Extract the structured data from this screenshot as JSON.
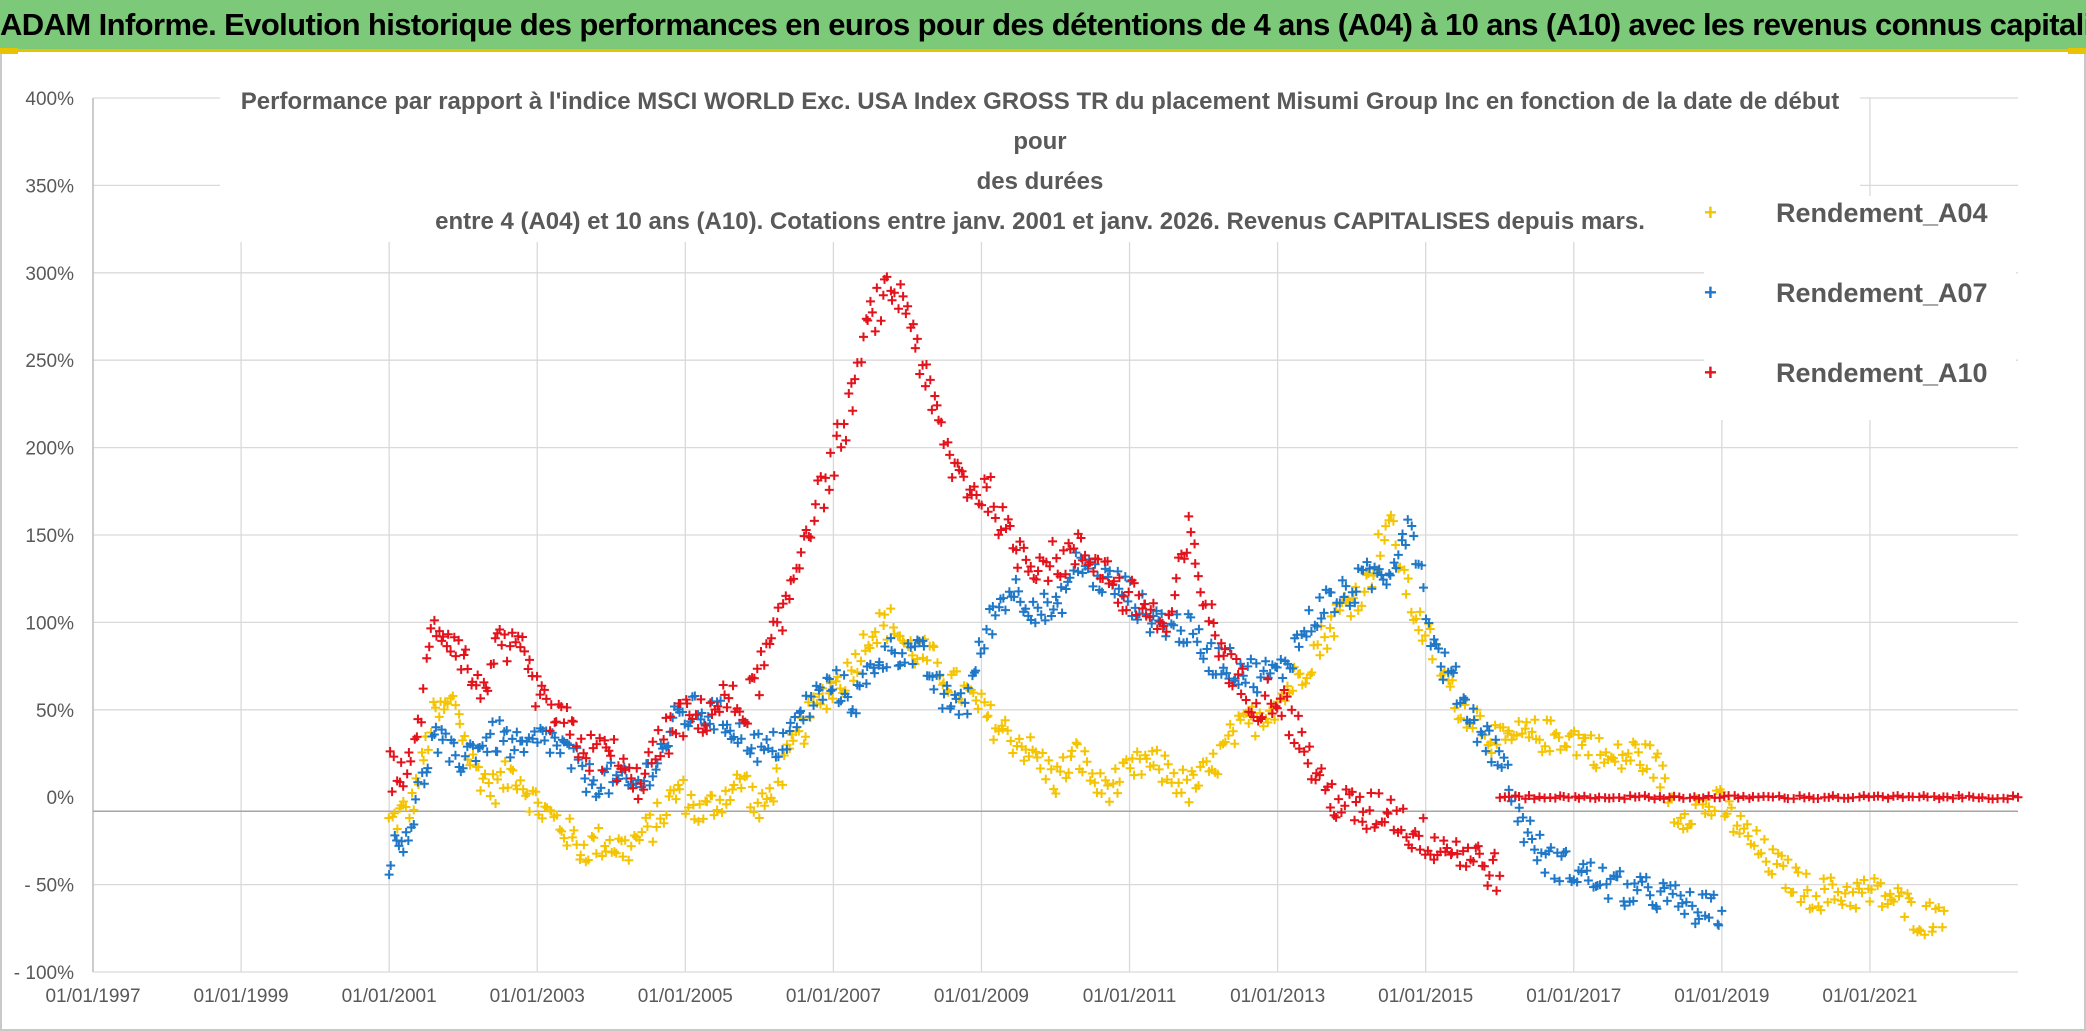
{
  "header": {
    "title": "ADAM Informe. Evolution historique des performances en euros pour des détentions de 4 ans (A04) à 10 ans (A10) avec les revenus connus capitalisés"
  },
  "colors": {
    "banner": "#7dc97a",
    "accent": "#e9c200",
    "A04": "#f5c400",
    "A07": "#1f77c8",
    "A10": "#e3121b",
    "grid": "#d9d9d9",
    "text": "#595959"
  },
  "chart_data": {
    "type": "scatter",
    "title_lines": [
      "Performance par rapport à l'indice MSCI WORLD Exc. USA Index GROSS TR  du placement Misumi Group Inc en fonction de la date de début pour",
      "des durées",
      "entre 4 (A04) et 10 ans (A10). Cotations entre janv. 2001 et janv. 2026. Revenus CAPITALISES depuis mars."
    ],
    "marker": "+",
    "x_range": [
      1997.0,
      2023.0
    ],
    "x_ticks": [
      {
        "label": "01/01/1997",
        "value": 1997
      },
      {
        "label": "01/01/1999",
        "value": 1999
      },
      {
        "label": "01/01/2001",
        "value": 2001
      },
      {
        "label": "01/01/2003",
        "value": 2003
      },
      {
        "label": "01/01/2005",
        "value": 2005
      },
      {
        "label": "01/01/2007",
        "value": 2007
      },
      {
        "label": "01/01/2009",
        "value": 2009
      },
      {
        "label": "01/01/2011",
        "value": 2011
      },
      {
        "label": "01/01/2013",
        "value": 2013
      },
      {
        "label": "01/01/2015",
        "value": 2015
      },
      {
        "label": "01/01/2017",
        "value": 2017
      },
      {
        "label": "01/01/2019",
        "value": 2019
      },
      {
        "label": "01/01/2021",
        "value": 2021
      }
    ],
    "ylim": [
      -100,
      400
    ],
    "y_ticks": [
      {
        "label": "400%",
        "value": 400
      },
      {
        "label": "350%",
        "value": 350
      },
      {
        "label": "300%",
        "value": 300
      },
      {
        "label": "250%",
        "value": 250
      },
      {
        "label": "200%",
        "value": 200
      },
      {
        "label": "150%",
        "value": 150
      },
      {
        "label": "100%",
        "value": 100
      },
      {
        "label": "50%",
        "value": 50
      },
      {
        "label": "0%",
        "value": 0
      },
      {
        "label": "- 50%",
        "value": -50
      },
      {
        "label": "- 100%",
        "value": -100
      }
    ],
    "grid": true,
    "legend_position": "right",
    "series": [
      {
        "name": "Rendement_A04",
        "color": "#f5c400",
        "spread": 10,
        "points": [
          [
            2001.0,
            -15
          ],
          [
            2001.3,
            -5
          ],
          [
            2001.6,
            45
          ],
          [
            2001.9,
            55
          ],
          [
            2002.1,
            20
          ],
          [
            2002.4,
            5
          ],
          [
            2002.7,
            15
          ],
          [
            2003.0,
            -5
          ],
          [
            2003.3,
            -15
          ],
          [
            2003.6,
            -30
          ],
          [
            2003.9,
            -25
          ],
          [
            2004.2,
            -30
          ],
          [
            2004.6,
            -15
          ],
          [
            2004.9,
            5
          ],
          [
            2005.2,
            -10
          ],
          [
            2005.5,
            0
          ],
          [
            2005.8,
            10
          ],
          [
            2006.0,
            -10
          ],
          [
            2006.3,
            15
          ],
          [
            2006.6,
            40
          ],
          [
            2006.9,
            60
          ],
          [
            2007.2,
            70
          ],
          [
            2007.5,
            95
          ],
          [
            2007.8,
            100
          ],
          [
            2008.0,
            85
          ],
          [
            2008.3,
            80
          ],
          [
            2008.6,
            65
          ],
          [
            2008.9,
            55
          ],
          [
            2009.1,
            45
          ],
          [
            2009.4,
            35
          ],
          [
            2009.7,
            25
          ],
          [
            2010.0,
            10
          ],
          [
            2010.3,
            25
          ],
          [
            2010.6,
            5
          ],
          [
            2010.9,
            10
          ],
          [
            2011.2,
            20
          ],
          [
            2011.5,
            15
          ],
          [
            2011.8,
            5
          ],
          [
            2012.1,
            15
          ],
          [
            2012.4,
            35
          ],
          [
            2012.7,
            45
          ],
          [
            2013.0,
            55
          ],
          [
            2013.3,
            70
          ],
          [
            2013.6,
            90
          ],
          [
            2013.9,
            110
          ],
          [
            2014.2,
            120
          ],
          [
            2014.5,
            160
          ],
          [
            2014.8,
            110
          ],
          [
            2015.1,
            85
          ],
          [
            2015.4,
            55
          ],
          [
            2015.7,
            45
          ],
          [
            2016.0,
            30
          ],
          [
            2016.3,
            35
          ],
          [
            2016.6,
            35
          ],
          [
            2016.9,
            35
          ],
          [
            2017.2,
            30
          ],
          [
            2017.5,
            20
          ],
          [
            2017.8,
            25
          ],
          [
            2018.1,
            20
          ],
          [
            2018.4,
            -10
          ],
          [
            2018.7,
            -5
          ],
          [
            2019.0,
            -5
          ],
          [
            2019.3,
            -20
          ],
          [
            2019.6,
            -35
          ],
          [
            2019.9,
            -45
          ],
          [
            2020.2,
            -55
          ],
          [
            2020.5,
            -55
          ],
          [
            2020.8,
            -55
          ],
          [
            2021.1,
            -55
          ],
          [
            2021.4,
            -60
          ],
          [
            2021.7,
            -70
          ],
          [
            2022.0,
            -65
          ]
        ]
      },
      {
        "name": "Rendement_A07",
        "color": "#1f77c8",
        "spread": 10,
        "points": [
          [
            2001.0,
            -35
          ],
          [
            2001.3,
            -15
          ],
          [
            2001.6,
            35
          ],
          [
            2001.9,
            20
          ],
          [
            2002.2,
            30
          ],
          [
            2002.5,
            35
          ],
          [
            2002.8,
            25
          ],
          [
            2003.1,
            35
          ],
          [
            2003.4,
            25
          ],
          [
            2003.7,
            10
          ],
          [
            2004.0,
            10
          ],
          [
            2004.3,
            5
          ],
          [
            2004.6,
            20
          ],
          [
            2004.9,
            45
          ],
          [
            2005.2,
            50
          ],
          [
            2005.5,
            45
          ],
          [
            2005.8,
            35
          ],
          [
            2006.1,
            25
          ],
          [
            2006.4,
            35
          ],
          [
            2006.7,
            55
          ],
          [
            2007.0,
            65
          ],
          [
            2007.3,
            55
          ],
          [
            2007.6,
            80
          ],
          [
            2007.9,
            85
          ],
          [
            2008.2,
            80
          ],
          [
            2008.5,
            55
          ],
          [
            2008.8,
            55
          ],
          [
            2009.1,
            100
          ],
          [
            2009.4,
            120
          ],
          [
            2009.7,
            110
          ],
          [
            2010.0,
            105
          ],
          [
            2010.3,
            135
          ],
          [
            2010.6,
            125
          ],
          [
            2010.9,
            120
          ],
          [
            2011.2,
            105
          ],
          [
            2011.5,
            100
          ],
          [
            2011.8,
            95
          ],
          [
            2012.1,
            80
          ],
          [
            2012.4,
            75
          ],
          [
            2012.7,
            70
          ],
          [
            2013.0,
            70
          ],
          [
            2013.3,
            90
          ],
          [
            2013.6,
            110
          ],
          [
            2013.9,
            115
          ],
          [
            2014.2,
            125
          ],
          [
            2014.5,
            130
          ],
          [
            2014.8,
            160
          ],
          [
            2015.1,
            85
          ],
          [
            2015.4,
            65
          ],
          [
            2015.7,
            40
          ],
          [
            2016.0,
            25
          ],
          [
            2016.3,
            -15
          ],
          [
            2016.6,
            -35
          ],
          [
            2016.9,
            -40
          ],
          [
            2017.2,
            -45
          ],
          [
            2017.5,
            -50
          ],
          [
            2017.8,
            -55
          ],
          [
            2018.1,
            -55
          ],
          [
            2018.4,
            -60
          ],
          [
            2018.7,
            -65
          ],
          [
            2019.0,
            -65
          ]
        ]
      },
      {
        "name": "Rendement_A10",
        "color": "#e3121b",
        "spread": 12,
        "points": [
          [
            2001.0,
            15
          ],
          [
            2001.3,
            15
          ],
          [
            2001.6,
            100
          ],
          [
            2001.9,
            90
          ],
          [
            2002.2,
            60
          ],
          [
            2002.5,
            85
          ],
          [
            2002.8,
            80
          ],
          [
            2003.1,
            50
          ],
          [
            2003.4,
            40
          ],
          [
            2003.7,
            25
          ],
          [
            2004.0,
            25
          ],
          [
            2004.3,
            5
          ],
          [
            2004.6,
            25
          ],
          [
            2004.9,
            45
          ],
          [
            2005.2,
            45
          ],
          [
            2005.5,
            55
          ],
          [
            2005.8,
            50
          ],
          [
            2006.0,
            70
          ],
          [
            2006.3,
            100
          ],
          [
            2006.6,
            150
          ],
          [
            2006.9,
            180
          ],
          [
            2007.2,
            220
          ],
          [
            2007.5,
            275
          ],
          [
            2007.8,
            290
          ],
          [
            2008.0,
            280
          ],
          [
            2008.3,
            230
          ],
          [
            2008.6,
            190
          ],
          [
            2008.9,
            175
          ],
          [
            2009.1,
            175
          ],
          [
            2009.4,
            145
          ],
          [
            2009.7,
            135
          ],
          [
            2010.0,
            135
          ],
          [
            2010.3,
            140
          ],
          [
            2010.6,
            135
          ],
          [
            2010.9,
            115
          ],
          [
            2011.2,
            110
          ],
          [
            2011.5,
            95
          ],
          [
            2011.8,
            150
          ],
          [
            2012.1,
            100
          ],
          [
            2012.4,
            70
          ],
          [
            2012.7,
            55
          ],
          [
            2013.0,
            60
          ],
          [
            2013.3,
            35
          ],
          [
            2013.6,
            5
          ],
          [
            2013.9,
            -5
          ],
          [
            2014.2,
            -10
          ],
          [
            2014.5,
            -5
          ],
          [
            2014.8,
            -20
          ],
          [
            2015.1,
            -25
          ],
          [
            2015.4,
            -30
          ],
          [
            2015.7,
            -35
          ],
          [
            2016.0,
            -45
          ]
        ]
      },
      {
        "name": "Rendement_A10_flat",
        "color": "#e3121b",
        "spread": 1,
        "points": [
          [
            2016.0,
            0
          ],
          [
            2023.0,
            0
          ]
        ]
      }
    ],
    "legend": [
      "Rendement_A04",
      "Rendement_A07",
      "Rendement_A10"
    ]
  }
}
